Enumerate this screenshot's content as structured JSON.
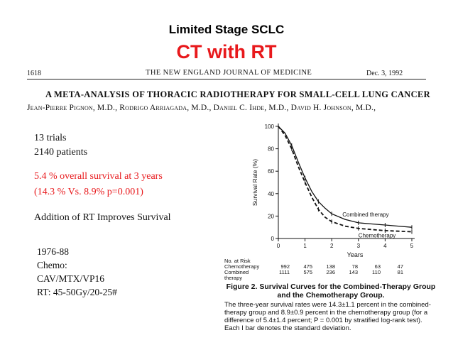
{
  "slide": {
    "title_line1": "Limited Stage SCLC",
    "title_line2": "CT with RT"
  },
  "article": {
    "page_number": "1618",
    "journal": "THE NEW ENGLAND JOURNAL OF MEDICINE",
    "date": "Dec. 3, 1992",
    "title": "A META-ANALYSIS OF THORACIC RADIOTHERAPY FOR SMALL-CELL LUNG CANCER",
    "authors": "Jean-Pierre Pignon, M.D., Rodrigo Arriagada, M.D., Daniel C. Ihde, M.D., David H. Johnson, M.D.,"
  },
  "summary": {
    "trials": "13 trials",
    "patients": "2140 patients",
    "survival": "5.4 % overall survival  at 3 years",
    "survival_detail": "(14.3 % Vs. 8.9% p=0.001)",
    "conclusion": "Addition of  RT  Improves Survival"
  },
  "regimen": {
    "years": "1976-88",
    "chemo_label": "Chemo:",
    "chemo_drugs": "CAV/MTX/VP16",
    "rt": "RT: 45-50Gy/20-25#"
  },
  "risk_table": {
    "header": "No. at Risk",
    "rows": [
      {
        "label": "Chemotherapy",
        "values": [
          "992",
          "475",
          "138",
          "78",
          "63",
          "47"
        ]
      },
      {
        "label": "Combined",
        "label2": "therapy",
        "values": [
          "1111",
          "575",
          "236",
          "143",
          "110",
          "81"
        ]
      }
    ]
  },
  "caption": {
    "title": "Figure 2. Survival Curves for the Combined-Therapy Group and the Chemotherapy Group.",
    "body": "The three-year survival rates were 14.3±1.1 percent in the combined-therapy group and 8.9±0.9 percent in the chemotherapy group (for a difference of 5.4±1.4 percent; P = 0.001 by stratified log-rank test). Each I bar denotes the standard deviation."
  },
  "chart_data": {
    "type": "line",
    "xlabel": "Years",
    "ylabel": "Survival Rate (%)",
    "xlim": [
      0,
      5
    ],
    "ylim": [
      0,
      100
    ],
    "xticks": [
      0,
      1,
      2,
      3,
      4,
      5
    ],
    "yticks": [
      0,
      20,
      40,
      60,
      80,
      100
    ],
    "grid": false,
    "series": [
      {
        "name": "Combined therapy",
        "style": "solid",
        "x": [
          0,
          0.25,
          0.5,
          0.75,
          1,
          1.25,
          1.5,
          1.75,
          2,
          2.5,
          3,
          3.5,
          4,
          4.5,
          5
        ],
        "y": [
          100,
          94,
          83,
          68,
          54,
          42,
          33,
          27,
          22,
          17,
          14,
          13,
          12,
          11,
          10
        ]
      },
      {
        "name": "Chemotherapy",
        "style": "dashed",
        "x": [
          0,
          0.25,
          0.5,
          0.75,
          1,
          1.25,
          1.5,
          1.75,
          2,
          2.5,
          3,
          3.5,
          4,
          4.5,
          5
        ],
        "y": [
          100,
          92,
          80,
          64,
          50,
          37,
          26,
          19,
          15,
          11,
          9,
          8,
          7,
          6.5,
          6
        ]
      }
    ],
    "annotations": [
      "Combined therapy",
      "Chemotherapy"
    ]
  }
}
